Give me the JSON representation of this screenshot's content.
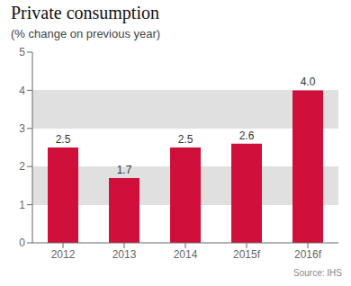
{
  "chart_data": {
    "type": "bar",
    "title": "Private consumption",
    "subtitle": "(% change on previous year)",
    "source": "Source: IHS",
    "categories": [
      "2012",
      "2013",
      "2014",
      "2015f",
      "2016f"
    ],
    "values": [
      2.5,
      1.7,
      2.5,
      2.6,
      4.0
    ],
    "value_labels": [
      "2.5",
      "1.7",
      "2.5",
      "2.6",
      "4.0"
    ],
    "color": "#d0103a",
    "ylim": [
      0,
      5
    ],
    "yticks": [
      0,
      1,
      2,
      3,
      4,
      5
    ],
    "grid": true,
    "data_labels": true
  }
}
